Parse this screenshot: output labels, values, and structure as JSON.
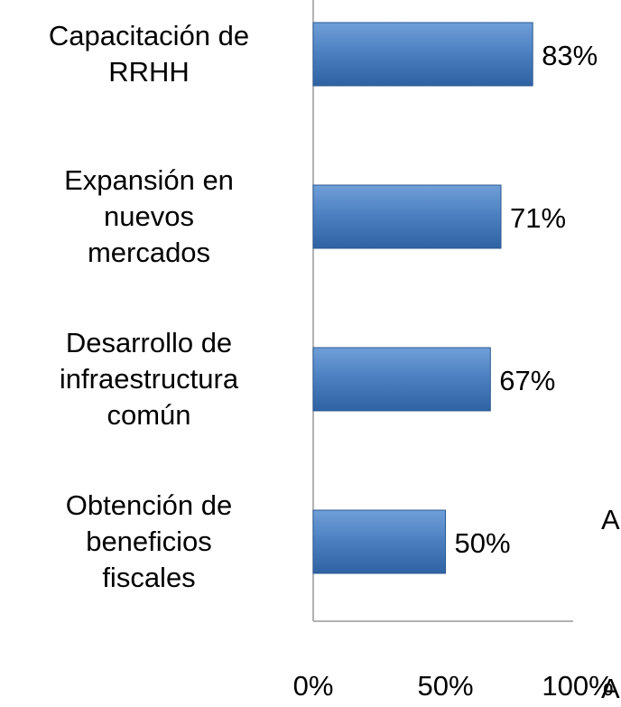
{
  "chart_data": {
    "type": "bar",
    "orientation": "horizontal",
    "categories": [
      "Capacitación de\nRRHH",
      "Expansión en\nnuevos\nmercados",
      "Desarrollo de\ninfraestructura\ncomún",
      "Obtención de\nbeneficios\nfiscales"
    ],
    "values": [
      83,
      71,
      67,
      50
    ],
    "value_labels": [
      "83%",
      "71%",
      "67%",
      "50%"
    ],
    "color": "#4f81bd",
    "xlim": [
      0,
      100
    ],
    "xticks": [
      {
        "value": 0,
        "label": "0%"
      },
      {
        "value": 50,
        "label": "50%"
      },
      {
        "value": 100,
        "label": "100%"
      }
    ],
    "annotations": [
      "A",
      "A"
    ]
  }
}
